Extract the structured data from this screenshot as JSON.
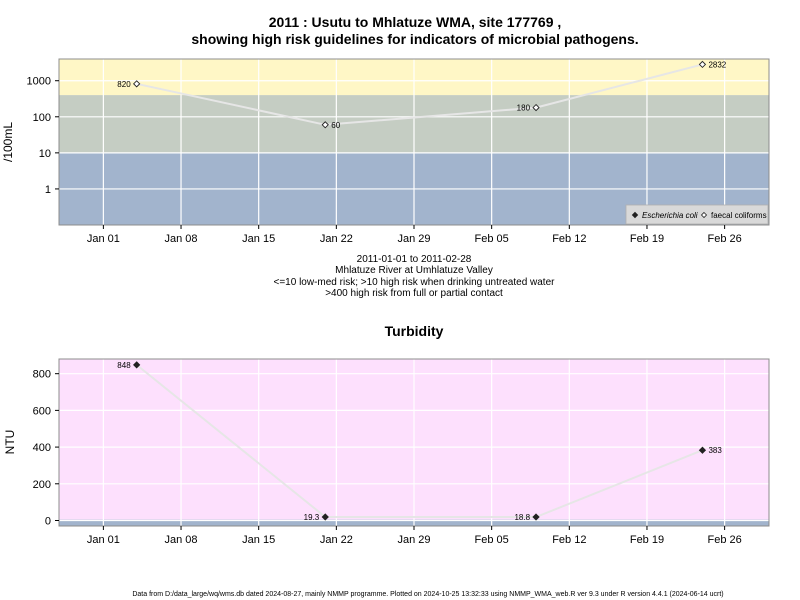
{
  "titles": {
    "line1": "2011 : Usutu to Mhlatuze WMA, site 177769 ,",
    "line2": "showing high risk guidelines for indicators of microbial pathogens."
  },
  "caption": {
    "line1": "2011-01-01 to 2011-02-28",
    "line2": "Mhlatuze River at Umhlatuze Valley",
    "line3": "<=10 low-med risk; >10 high risk when drinking untreated water",
    "line4": ">400 high risk from full or partial contact"
  },
  "footer": "Data from D:/data_large/wq/wms.db dated 2024-08-27, mainly NMMP programme. Plotted on 2024-10-25 13:32:33 using NMMP_WMA_web.R ver 9.3 under R version 4.4.1 (2024-06-14 ucrt)",
  "chart_data": [
    {
      "type": "scatter",
      "title": "",
      "xlabel": "",
      "ylabel": "/100mL",
      "yscale": "log",
      "xlim": [
        "2010-12-28",
        "2011-03-02"
      ],
      "ylim": [
        0.1,
        4000
      ],
      "xticks": [
        "Jan 01",
        "Jan 08",
        "Jan 15",
        "Jan 22",
        "Jan 29",
        "Feb 05",
        "Feb 12",
        "Feb 19",
        "Feb 26"
      ],
      "xtick_dates": [
        "2011-01-01",
        "2011-01-08",
        "2011-01-15",
        "2011-01-22",
        "2011-01-29",
        "2011-02-05",
        "2011-02-12",
        "2011-02-19",
        "2011-02-26"
      ],
      "yticks": [
        "1",
        "10",
        "100",
        "1000"
      ],
      "ytick_values": [
        1,
        10,
        100,
        1000
      ],
      "grid": true,
      "bands": [
        {
          "from": 0.1,
          "to": 10,
          "color": "#a2b4cd"
        },
        {
          "from": 10,
          "to": 400,
          "color": "#c5cdc3"
        },
        {
          "from": 400,
          "to": 4000,
          "color": "#fff7c6"
        }
      ],
      "series": [
        {
          "name": "faecal coliforms",
          "marker": "open-diamond",
          "x": [
            "2011-01-04",
            "2011-01-21",
            "2011-02-09",
            "2011-02-24"
          ],
          "y": [
            820,
            60,
            180,
            2832
          ],
          "labels": [
            "820",
            "60",
            "180",
            "2832"
          ]
        }
      ],
      "legend": {
        "placement": "bottom-right",
        "entries": [
          {
            "label": "Escherichia coli",
            "marker": "filled-diamond"
          },
          {
            "label": "faecal coliforms",
            "marker": "open-diamond"
          }
        ]
      }
    },
    {
      "type": "scatter",
      "title": "Turbidity",
      "xlabel": "",
      "ylabel": "NTU",
      "xlim": [
        "2010-12-28",
        "2011-03-02"
      ],
      "ylim": [
        -30,
        880
      ],
      "xticks": [
        "Jan 01",
        "Jan 08",
        "Jan 15",
        "Jan 22",
        "Jan 29",
        "Feb 05",
        "Feb 12",
        "Feb 19",
        "Feb 26"
      ],
      "xtick_dates": [
        "2011-01-01",
        "2011-01-08",
        "2011-01-15",
        "2011-01-22",
        "2011-01-29",
        "2011-02-05",
        "2011-02-12",
        "2011-02-19",
        "2011-02-26"
      ],
      "yticks": [
        "0",
        "200",
        "400",
        "600",
        "800"
      ],
      "ytick_values": [
        0,
        200,
        400,
        600,
        800
      ],
      "grid": true,
      "bands": [
        {
          "from": -30,
          "to": 5,
          "color": "#a2b4cd"
        },
        {
          "from": 5,
          "to": 880,
          "color": "#fde0fd"
        }
      ],
      "series": [
        {
          "name": "",
          "marker": "filled-diamond",
          "x": [
            "2011-01-04",
            "2011-01-21",
            "2011-02-09",
            "2011-02-24"
          ],
          "y": [
            848,
            19.3,
            18.8,
            383
          ],
          "labels": [
            "848",
            "19.3",
            "18.8",
            "383"
          ]
        }
      ]
    }
  ]
}
